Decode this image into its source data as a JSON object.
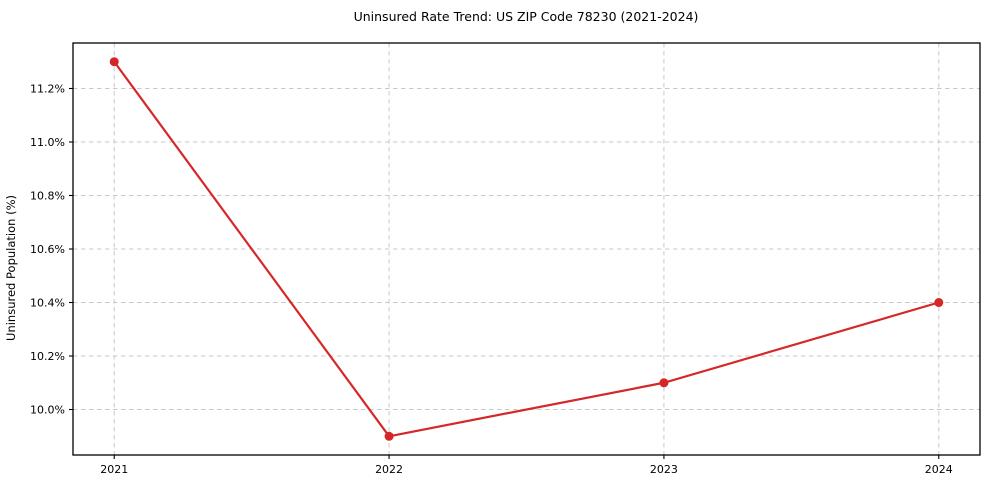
{
  "chart_data": {
    "type": "line",
    "title": "Uninsured Rate Trend: US ZIP Code 78230 (2021-2024)",
    "xlabel": "",
    "ylabel": "Uninsured Population (%)",
    "x": [
      2021,
      2022,
      2023,
      2024
    ],
    "x_tick_labels": [
      "2021",
      "2022",
      "2023",
      "2024"
    ],
    "values": [
      11.3,
      9.9,
      10.1,
      10.4
    ],
    "y_ticks": [
      10.0,
      10.2,
      10.4,
      10.6,
      10.8,
      11.0,
      11.2
    ],
    "y_tick_labels": [
      "10.0%",
      "10.2%",
      "10.4%",
      "10.6%",
      "10.8%",
      "11.0%",
      "11.2%"
    ],
    "xlim": [
      2020.85,
      2024.15
    ],
    "ylim": [
      9.83,
      11.37
    ],
    "grid": true,
    "grid_style": "dashed",
    "legend": "none",
    "marker": "circle"
  },
  "colors": {
    "line": "#d62728",
    "grid": "#c9c9c9",
    "spine": "#000000",
    "background": "#ffffff",
    "text": "#000000"
  }
}
